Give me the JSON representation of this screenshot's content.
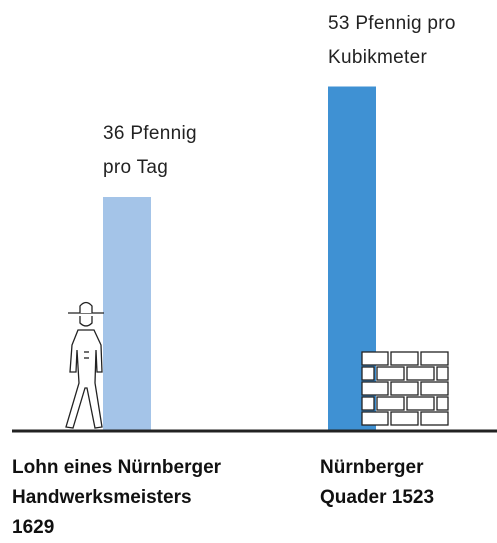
{
  "chart_data": {
    "type": "bar",
    "categories": [
      "Lohn eines Nürnberger\nHandwerksmeisters\n1629",
      "Nürnberger\nQuader 1523"
    ],
    "values": [
      36,
      53
    ],
    "value_labels": [
      "36 Pfennig\npro Tag",
      "53 Pfennig pro\nKubikmeter"
    ],
    "colors": [
      "#a4c4e8",
      "#3f91d3"
    ]
  }
}
